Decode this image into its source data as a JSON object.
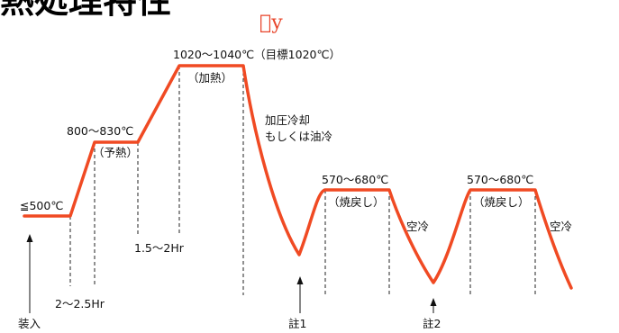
{
  "title": "熱処理特性",
  "title_mark": "\u0000y",
  "colors": {
    "curve": "#f04a23",
    "title_mark": "#e8442a",
    "text": "#111111"
  },
  "stages": {
    "charge_temp": "≦500℃",
    "preheat_temp": "800～830℃",
    "preheat": "（予熱）",
    "heating_temp": "1020～1040℃（目標1020℃）",
    "heating": "（加熱）",
    "quench_line1": "加圧冷却",
    "quench_line2": "もしくは油冷",
    "temper1_temp": "570～680℃",
    "temper1": "（焼戻し）",
    "air_cool_1": "空冷",
    "temper2_temp": "570～680℃",
    "temper2": "（焼戻し）",
    "air_cool_2": "空冷"
  },
  "times": {
    "preheat_time": "2～2.5Hr",
    "heating_time": "1.5～2Hr"
  },
  "markers": {
    "charge": "装入",
    "note1": "註1",
    "note2": "註2"
  }
}
